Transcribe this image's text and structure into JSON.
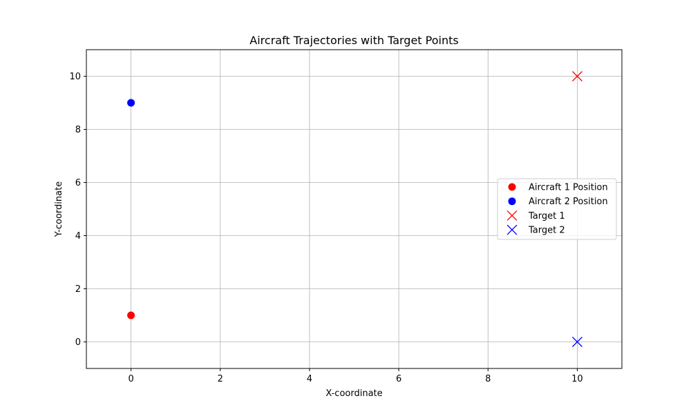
{
  "chart_data": {
    "type": "scatter",
    "title": "Aircraft Trajectories with Target Points",
    "xlabel": "X-coordinate",
    "ylabel": "Y-coordinate",
    "xlim": [
      -1,
      11
    ],
    "ylim": [
      -1,
      11
    ],
    "xticks": [
      0,
      2,
      4,
      6,
      8,
      10
    ],
    "yticks": [
      0,
      2,
      4,
      6,
      8,
      10
    ],
    "grid": true,
    "legend_position": "center-right",
    "series": [
      {
        "name": "Aircraft 1 Position",
        "marker": "circle",
        "color": "#ff0000",
        "points": [
          [
            0,
            1
          ]
        ]
      },
      {
        "name": "Aircraft 2 Position",
        "marker": "circle",
        "color": "#0000ff",
        "points": [
          [
            0,
            9
          ]
        ]
      },
      {
        "name": "Target 1",
        "marker": "x",
        "color": "#ff0000",
        "points": [
          [
            10,
            10
          ]
        ]
      },
      {
        "name": "Target 2",
        "marker": "x",
        "color": "#0000ff",
        "points": [
          [
            10,
            0
          ]
        ]
      }
    ]
  }
}
